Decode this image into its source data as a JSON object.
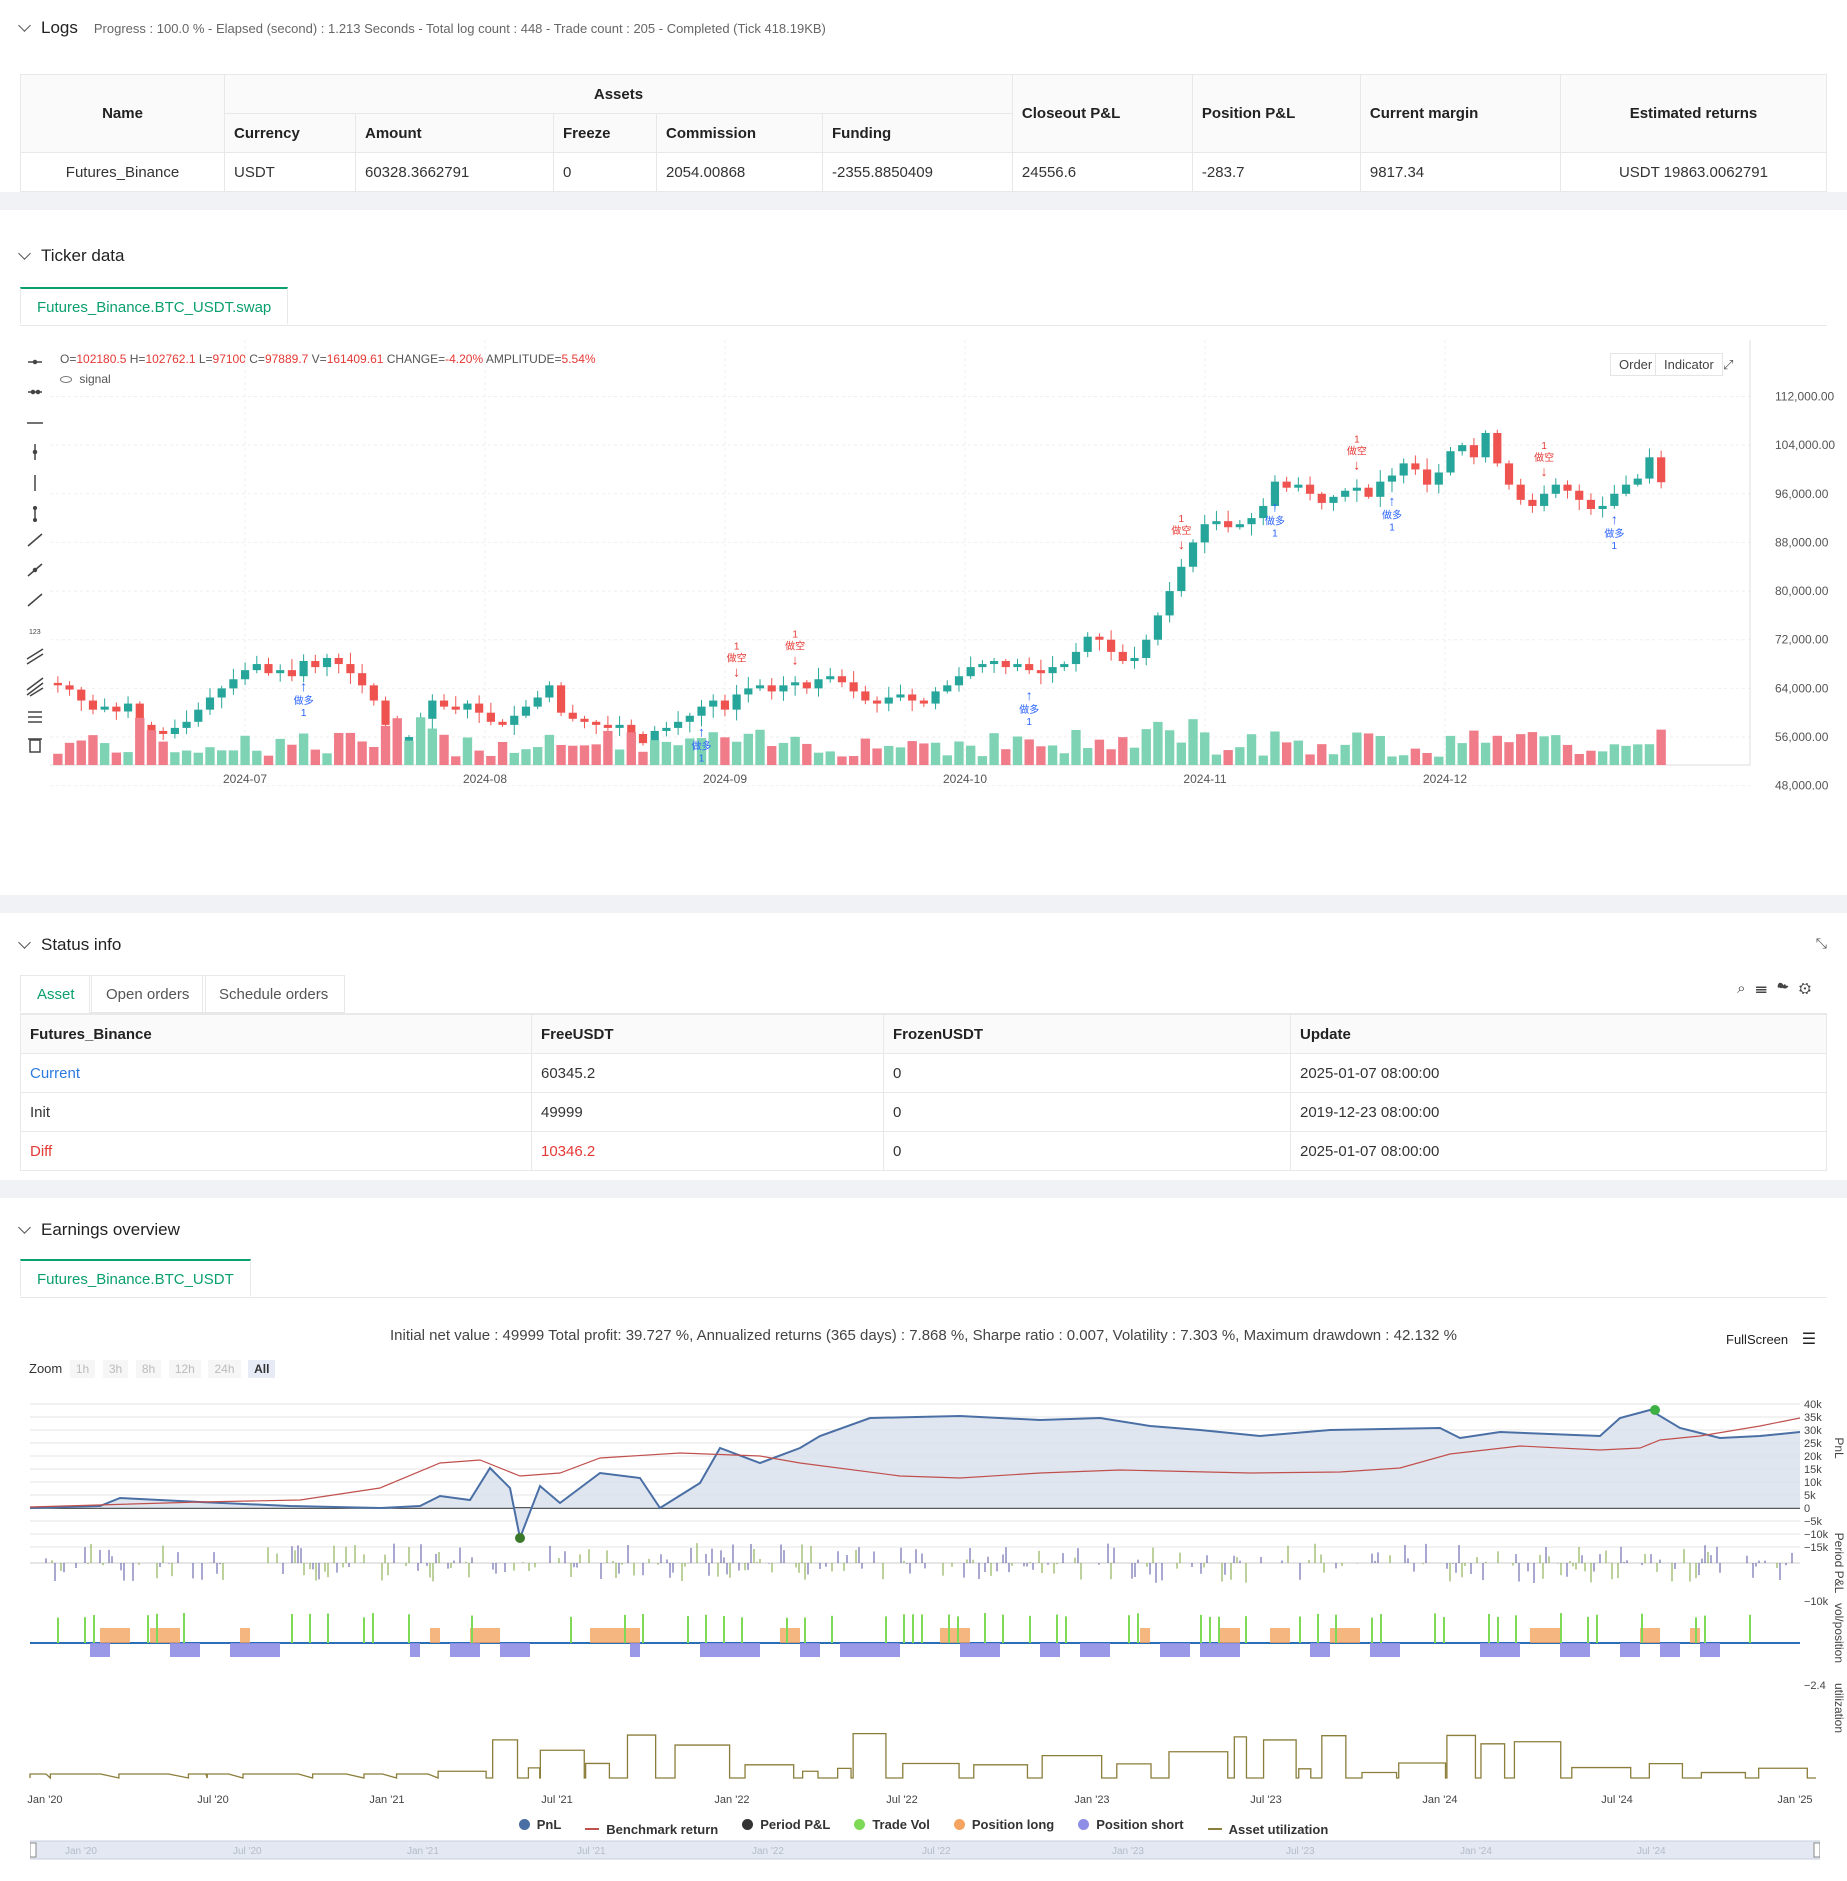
{
  "logs": {
    "title": "Logs",
    "progress": "Progress : 100.0 % - Elapsed (second) : 1.213  Seconds - Total log count : 448 - Trade count : 205 - Completed (Tick 418.19KB)",
    "headers": {
      "name": "Name",
      "assets": "Assets",
      "currency": "Currency",
      "amount": "Amount",
      "freeze": "Freeze",
      "commission": "Commission",
      "funding": "Funding",
      "closeout": "Closeout P&L",
      "position": "Position P&L",
      "margin": "Current margin",
      "estimated": "Estimated returns"
    },
    "row": {
      "name": "Futures_Binance",
      "currency": "USDT",
      "amount": "60328.3662791",
      "freeze": "0",
      "commission": "2054.00868",
      "funding": "-2355.8850409",
      "closeout": "24556.6",
      "position": "-283.7",
      "margin": "9817.34",
      "estimated": "USDT 19863.0062791"
    }
  },
  "ticker": {
    "title": "Ticker data",
    "tab": "Futures_Binance.BTC_USDT.swap",
    "ohlc": {
      "o_label": "O=",
      "o": "102180.5",
      "h_label": "H=",
      "h": "102762.1",
      "l_label": "L=",
      "l": "97100",
      "c_label": "C=",
      "c": "97889.7",
      "v_label": "V=",
      "v": "161409.61",
      "change_label": "CHANGE=",
      "change": "-4.20%",
      "amp_label": "AMPLITUDE=",
      "amp": "5.54%"
    },
    "signal_label": "signal",
    "order_btn": "Order",
    "indicator_btn": "Indicator",
    "colors": {
      "up": "#26a69a",
      "down": "#ef5350",
      "long": "#2962ff",
      "short": "#e53935"
    }
  },
  "chart_data": [
    {
      "type": "candlestick",
      "y_ticks": [
        "112,000.00",
        "104,000.00",
        "96,000.00",
        "88,000.00",
        "80,000.00",
        "72,000.00",
        "64,000.00",
        "56,000.00",
        "48,000.00"
      ],
      "x_ticks": [
        "2024-07",
        "2024-08",
        "2024-09",
        "2024-10",
        "2024-11",
        "2024-12"
      ],
      "ylim": [
        44000,
        118000
      ],
      "close_path": [
        64500,
        63800,
        62000,
        60500,
        61000,
        60200,
        61500,
        58000,
        57000,
        56500,
        57500,
        58500,
        60500,
        62500,
        64000,
        65500,
        67000,
        68000,
        66500,
        67000,
        66000,
        68500,
        67500,
        69000,
        68000,
        66500,
        64500,
        62000,
        58000,
        54000,
        56000,
        59000,
        62000,
        61000,
        60500,
        61500,
        60000,
        58500,
        58000,
        59500,
        61000,
        62500,
        64500,
        60000,
        59000,
        58500,
        58000,
        57500,
        58000,
        56500,
        55000,
        57000,
        57500,
        58500,
        59500,
        61000,
        62000,
        60500,
        63000,
        64000,
        64500,
        63500,
        64500,
        65000,
        64000,
        65500,
        66000,
        65000,
        63500,
        62000,
        61500,
        62500,
        63000,
        62000,
        61500,
        63500,
        64500,
        66000,
        67500,
        68000,
        68500,
        67500,
        68000,
        67000,
        66500,
        67500,
        68000,
        70000,
        72500,
        72000,
        70000,
        68500,
        69000,
        72000,
        76000,
        80000,
        84000,
        88000,
        91000,
        91500,
        90500,
        91000,
        92000,
        94000,
        98000,
        97000,
        97500,
        96000,
        94500,
        95500,
        96500,
        97000,
        95500,
        98000,
        99000,
        101000,
        100000,
        97500,
        99500,
        103000,
        104000,
        102000,
        106000,
        101000,
        97500,
        95000,
        94000,
        96000,
        97500,
        96500,
        95000,
        93500,
        94000,
        96000,
        97500,
        98500,
        102000,
        97900
      ],
      "markers": [
        {
          "label": "做多",
          "qty": "1",
          "type": "long"
        },
        {
          "label": "做空",
          "qty": "1",
          "type": "short"
        },
        {
          "label": "做多",
          "qty": "1",
          "type": "long"
        },
        {
          "label": "做空",
          "qty": "1",
          "type": "short"
        },
        {
          "label": "做多",
          "qty": "1",
          "type": "long"
        },
        {
          "label": "做空",
          "qty": "1",
          "type": "short"
        },
        {
          "label": "做多",
          "qty": "1",
          "type": "long"
        },
        {
          "label": "做空",
          "qty": "1",
          "type": "short"
        },
        {
          "label": "做多",
          "qty": "1",
          "type": "long"
        },
        {
          "label": "做空",
          "qty": "1",
          "type": "short"
        },
        {
          "label": "做多",
          "qty": "1",
          "type": "long"
        }
      ]
    },
    {
      "type": "line",
      "series": [
        {
          "name": "PnL"
        },
        {
          "name": "Benchmark return"
        }
      ],
      "y_ticks": [
        "40k",
        "35k",
        "30k",
        "25k",
        "20k",
        "15k",
        "10k",
        "5k",
        "0",
        "−5k",
        "−10k",
        "−15k"
      ],
      "x_ticks": [
        "Jan '20",
        "Jul '20",
        "Jan '21",
        "Jul '21",
        "Jan '22",
        "Jul '22",
        "Jan '23",
        "Jul '23",
        "Jan '24",
        "Jul '24",
        "Jan '25"
      ]
    }
  ],
  "status": {
    "title": "Status info",
    "tabs": [
      "Asset",
      "Open orders",
      "Schedule orders"
    ],
    "headers": [
      "Futures_Binance",
      "FreeUSDT",
      "FrozenUSDT",
      "Update"
    ],
    "rows": [
      [
        "Current",
        "60345.2",
        "0",
        "2025-01-07 08:00:00"
      ],
      [
        "Init",
        "49999",
        "0",
        "2019-12-23 08:00:00"
      ],
      [
        "Diff",
        "10346.2",
        "0",
        "2025-01-07 08:00:00"
      ]
    ]
  },
  "earnings": {
    "title": "Earnings overview",
    "tab": "Futures_Binance.BTC_USDT",
    "summary": "Initial net value : 49999 Total profit: 39.727 %, Annualized returns (365 days) : 7.868 %, Sharpe ratio : 0.007, Volatility : 7.303 %, Maximum drawdown : 42.132 %",
    "fullscreen": "FullScreen",
    "zoom_label": "Zoom",
    "zoom_opts": [
      "1h",
      "3h",
      "8h",
      "12h",
      "24h",
      "All"
    ],
    "axis_labels": [
      "PnL",
      "Period P&L",
      "vol/position",
      "utilization"
    ],
    "pp_tick": "−10k",
    "vol_tick": "−2.4",
    "legend": [
      "PnL",
      "Benchmark return",
      "Period P&L",
      "Trade Vol",
      "Position long",
      "Position short",
      "Asset utilization"
    ],
    "legend_colors": [
      "#4a6fa5",
      "#c0504d",
      "#333333",
      "#7ed957",
      "#f4a460",
      "#8e8ee6",
      "#8b7d3a"
    ]
  }
}
